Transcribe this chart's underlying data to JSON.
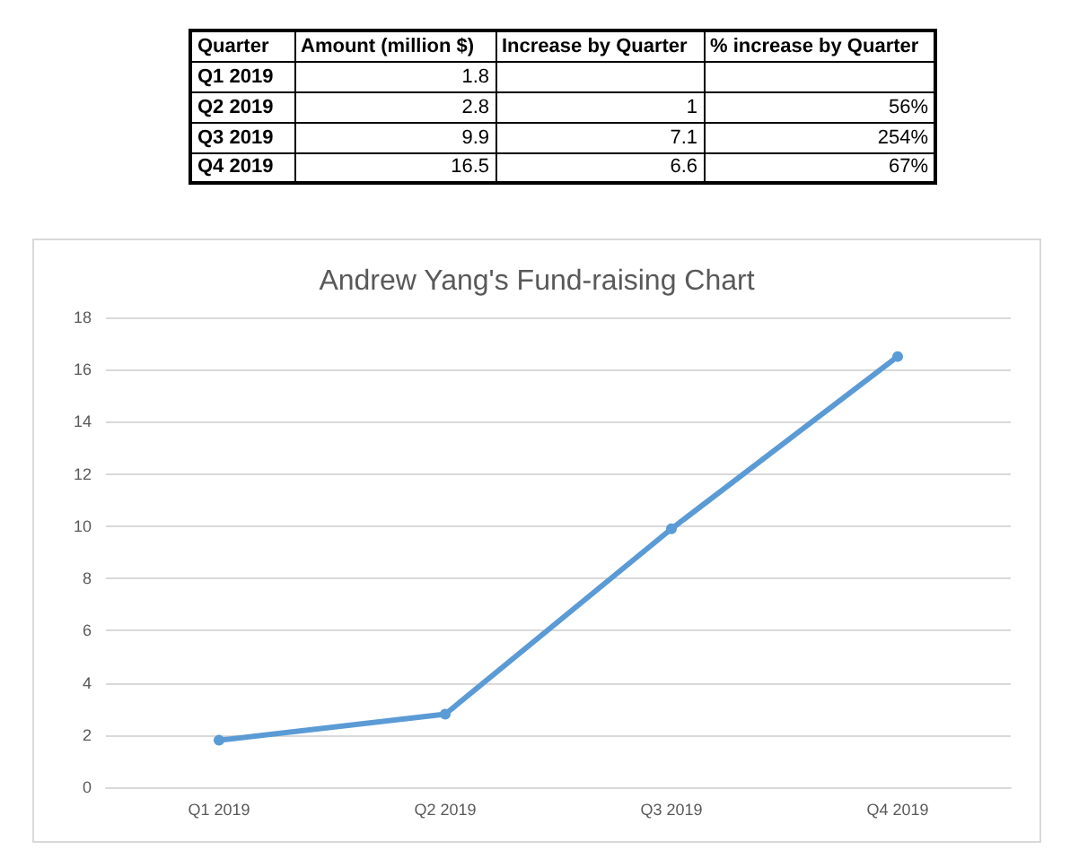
{
  "chart_data": [
    {
      "type": "other",
      "categories": [
        "Quarter",
        "Amount (million $)",
        "Increase by Quarter",
        "% increase by Quarter"
      ],
      "annotations": [
        "Q1 2019",
        "1.8",
        null,
        null,
        "Q2 2019",
        "2.8",
        "1",
        "56%",
        "Q3 2019",
        "9.9",
        "7.1",
        "254%",
        "Q4 2019",
        "16.5",
        "6.6",
        "67%"
      ]
    },
    {
      "type": "line",
      "title": "Andrew Yang's Fund-raising Chart",
      "categories": [
        "Q1 2019",
        "Q2 2019",
        "Q3 2019",
        "Q4 2019"
      ],
      "series": [
        {
          "color": "#5b9bd5",
          "values": [
            1.8,
            2.8,
            9.9,
            16.5
          ]
        }
      ],
      "ylim": [
        0,
        18
      ],
      "yticks": [
        0,
        2,
        4,
        6,
        8,
        10,
        12,
        14,
        16,
        18
      ],
      "grid": "y",
      "marker": "circle"
    }
  ]
}
